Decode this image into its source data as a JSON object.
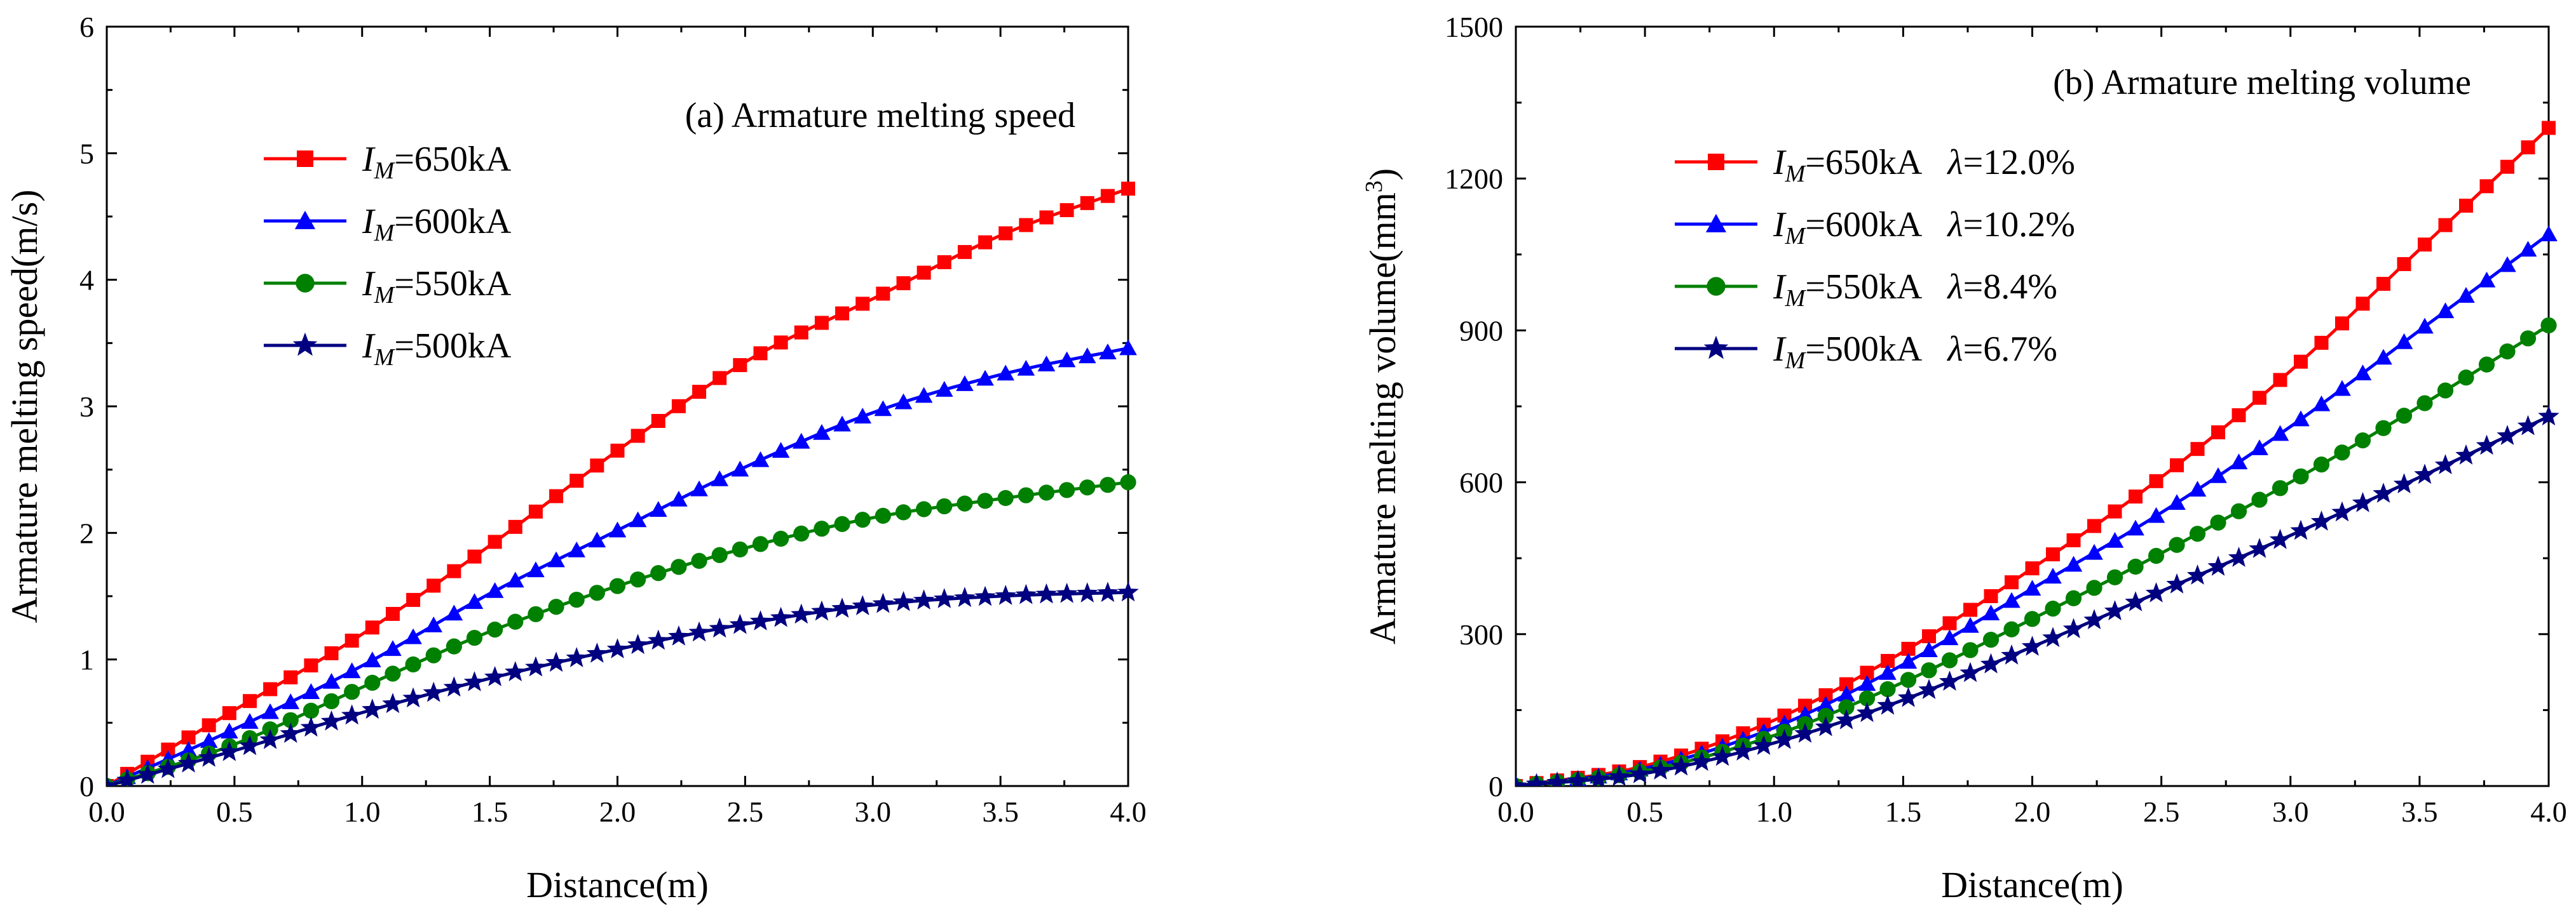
{
  "figure": {
    "charts_label": "two line charts comparing armature melting speed and volume"
  },
  "chart_data": [
    {
      "type": "line",
      "title": "(a) Armature melting speed",
      "xlabel": "Distance(m)",
      "ylabel": "Armature melting speed(m/s)",
      "xlim": [
        0,
        4.0
      ],
      "ylim": [
        0,
        6
      ],
      "xticks": [
        "0.0",
        "0.5",
        "1.0",
        "1.5",
        "2.0",
        "2.5",
        "3.0",
        "3.5",
        "4.0"
      ],
      "yticks": [
        "0",
        "1",
        "2",
        "3",
        "4",
        "5",
        "6"
      ],
      "grid": false,
      "legend_position": "top-left",
      "x": [
        0.0,
        0.5,
        1.0,
        1.5,
        2.0,
        2.5,
        3.0,
        3.5,
        4.0
      ],
      "series": [
        {
          "name": "IM=650kA",
          "current": "650kA",
          "extra": "",
          "color": "#ff0000",
          "marker": "square",
          "values": [
            0.0,
            0.6,
            1.2,
            1.9,
            2.65,
            3.35,
            3.85,
            4.35,
            4.72
          ]
        },
        {
          "name": "IM=600kA",
          "current": "600kA",
          "extra": "",
          "color": "#0000ff",
          "marker": "triangle",
          "values": [
            0.0,
            0.45,
            0.95,
            1.52,
            2.02,
            2.52,
            2.95,
            3.25,
            3.46
          ]
        },
        {
          "name": "IM=550kA",
          "current": "550kA",
          "extra": "",
          "color": "#008000",
          "marker": "circle",
          "values": [
            0.0,
            0.33,
            0.78,
            1.22,
            1.58,
            1.88,
            2.12,
            2.27,
            2.4
          ]
        },
        {
          "name": "IM=500kA",
          "current": "500kA",
          "extra": "",
          "color": "#000080",
          "marker": "star",
          "values": [
            0.0,
            0.28,
            0.58,
            0.85,
            1.08,
            1.28,
            1.43,
            1.5,
            1.53
          ]
        }
      ]
    },
    {
      "type": "line",
      "title": "(b) Armature melting volume",
      "xlabel": "Distance(m)",
      "ylabel": "Armature melting volume(mm3)",
      "ylabel_main": "Armature melting volume(mm",
      "ylabel_sup": "3",
      "ylabel_close": ")",
      "xlim": [
        0,
        4.0
      ],
      "ylim": [
        0,
        1500
      ],
      "xticks": [
        "0.0",
        "0.5",
        "1.0",
        "1.5",
        "2.0",
        "2.5",
        "3.0",
        "3.5",
        "4.0"
      ],
      "yticks": [
        "0",
        "300",
        "600",
        "900",
        "1200",
        "1500"
      ],
      "grid": false,
      "legend_position": "top-left",
      "x": [
        0.0,
        0.5,
        1.0,
        1.5,
        2.0,
        2.5,
        3.0,
        3.5,
        4.0
      ],
      "series": [
        {
          "name": "IM=650kA λ=12.0%",
          "current": "650kA",
          "extra": "λ=12.0%",
          "color": "#ff0000",
          "marker": "square",
          "values": [
            0,
            40,
            130,
            265,
            430,
            610,
            820,
            1060,
            1300
          ]
        },
        {
          "name": "IM=600kA λ=10.2%",
          "current": "600kA",
          "extra": "λ=10.2%",
          "color": "#0000ff",
          "marker": "triangle",
          "values": [
            0,
            35,
            115,
            240,
            390,
            540,
            710,
            900,
            1090
          ]
        },
        {
          "name": "IM=550kA λ=8.4%",
          "current": "550kA",
          "extra": "λ=8.4%",
          "color": "#008000",
          "marker": "circle",
          "values": [
            0,
            30,
            100,
            205,
            330,
            460,
            600,
            750,
            910
          ]
        },
        {
          "name": "IM=500kA λ=6.7%",
          "current": "500kA",
          "extra": "λ=6.7%",
          "color": "#000080",
          "marker": "star",
          "values": [
            0,
            25,
            85,
            170,
            275,
            385,
            495,
            610,
            730
          ]
        }
      ]
    }
  ]
}
